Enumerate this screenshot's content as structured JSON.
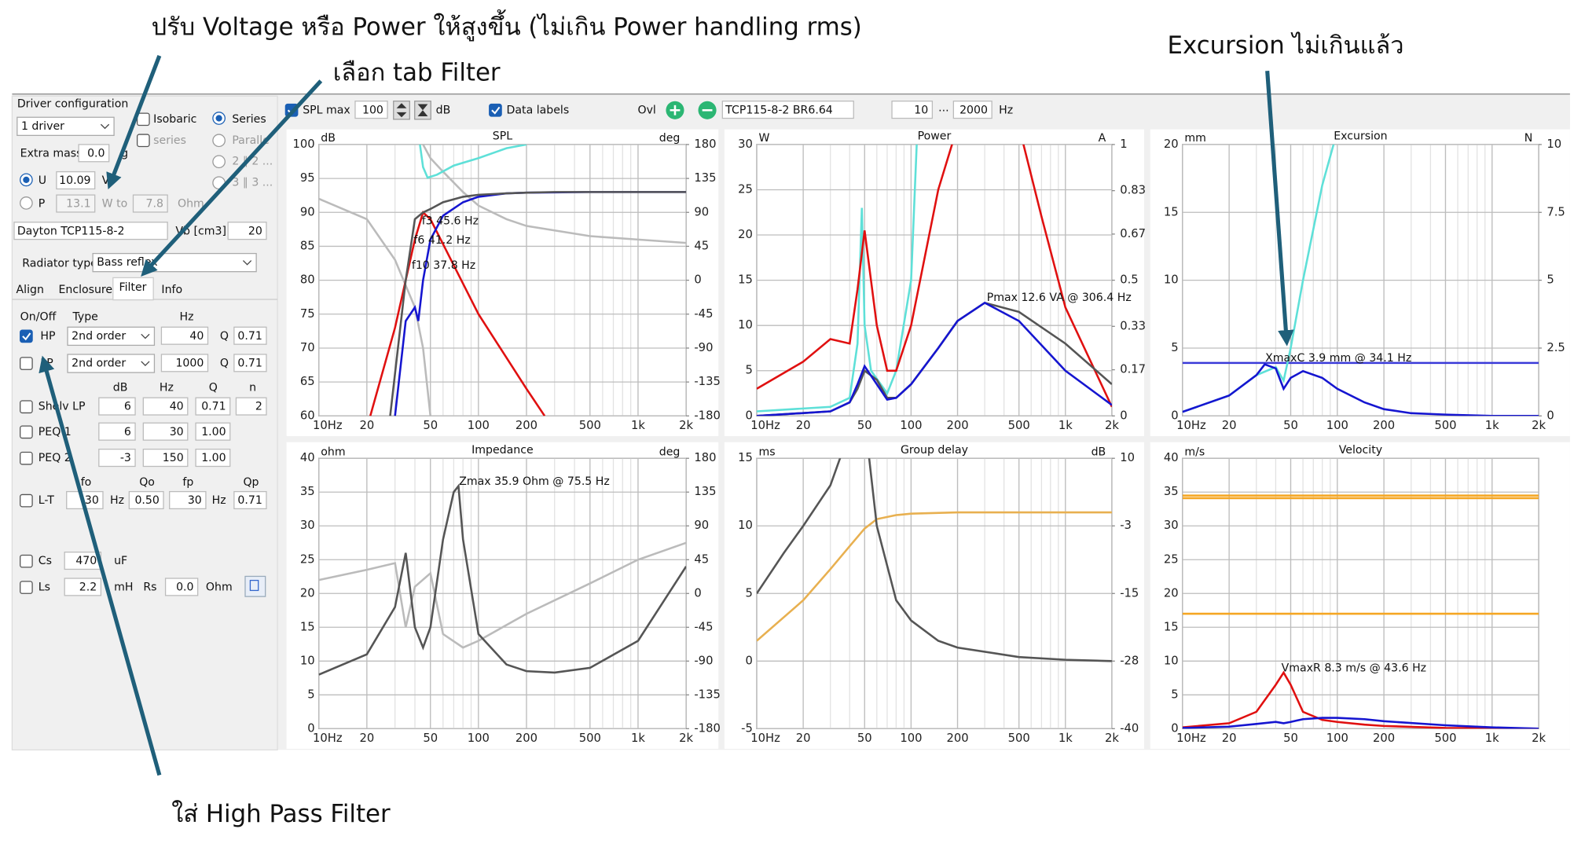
{
  "annotations": [
    "ปรับ Voltage หรือ Power ให้สูงขึ้น (ไม่เกิน Power handling rms)",
    "เลือก tab Filter",
    "Excursion ไม่เกินแล้ว",
    "ใส่ High Pass Filter"
  ],
  "toolbar": {
    "items": [
      "SPL max",
      "100",
      "dB",
      "Data labels",
      "Ovl",
      "TCP115-8-2 BR6.64",
      "10",
      "...",
      "2000",
      "Hz"
    ]
  },
  "panel": {
    "items": [
      "Driver configuration",
      "1 driver",
      "Isobaric",
      "Series",
      "series",
      "Paralle",
      "2 ∥ 2 ...",
      "3 ∥ 3 ...",
      "Extra mass",
      "0.0",
      "g",
      "U",
      "10.09",
      "V",
      "P",
      "13.1",
      "W to",
      "7.8",
      "Ohm",
      "Dayton TCP115-8-2",
      "Vb [cm3]",
      "20",
      "Radiator type",
      "Bass reflex",
      "Align",
      "Enclosure",
      "Filter",
      "Info",
      "On/Off",
      "Type",
      "Hz",
      "HP",
      "2nd order",
      "40",
      "Q",
      "0.71",
      "LP",
      "2nd order",
      "1000",
      "Q",
      "0.71",
      "dB",
      "Hz",
      "Q",
      "n",
      "Shelv LP",
      "6",
      "40",
      "0.71",
      "2",
      "PEQ 1",
      "6",
      "30",
      "1.00",
      "PEQ 2",
      "-3",
      "150",
      "1.00",
      "fo",
      "Qo",
      "fp",
      "Qp",
      "L-T",
      "30",
      "Hz",
      "0.50",
      "30",
      "Hz",
      "0.71",
      "Cs",
      "470",
      "uF",
      "Ls",
      "2.2",
      "mH",
      "Rs",
      "0.0",
      "Ohm"
    ]
  },
  "chart_data": [
    {
      "type": "line",
      "title": "SPL",
      "ylabel": "dB",
      "y2label": "deg",
      "xscale": "log",
      "grid": true,
      "xlim": [
        10,
        2000
      ],
      "xticks": [
        {
          "value": 10,
          "label": "10Hz"
        },
        20,
        50,
        100,
        200,
        500,
        {
          "value": 1000,
          "label": "1k"
        },
        {
          "value": 2000,
          "label": "2k"
        }
      ],
      "ylim": [
        60,
        100
      ],
      "yticks": [
        60,
        65,
        70,
        75,
        80,
        85,
        90,
        95,
        100
      ],
      "y2lim": [
        -180,
        180
      ],
      "y2ticks": [
        -180,
        -135,
        -90,
        -45,
        0,
        45,
        90,
        135,
        180
      ],
      "series": [
        {
          "color": "#bbbbbb",
          "axis": "y2",
          "x": [
            10,
            20,
            30,
            40,
            45,
            50
          ],
          "values": [
            108,
            81,
            27,
            -36,
            -90,
            -180
          ]
        },
        {
          "color": "#bbbbbb",
          "axis": "y2",
          "x": [
            45,
            50,
            60,
            80,
            100,
            150,
            200,
            500,
            1000,
            2000
          ],
          "values": [
            180,
            162,
            144,
            117,
            99,
            81,
            72,
            58.5,
            54,
            49.5
          ]
        },
        {
          "color": "#5ee0d8",
          "axis": "y2",
          "x": [
            43,
            45,
            48,
            55,
            70,
            100,
            150,
            200
          ],
          "values": [
            180,
            150,
            136,
            140,
            152,
            162,
            175,
            180
          ]
        },
        {
          "color": "#e01010",
          "x": [
            21,
            30,
            40,
            45,
            50,
            100,
            200,
            260
          ],
          "values": [
            60,
            73,
            86,
            90,
            89,
            75,
            64,
            60
          ]
        },
        {
          "color": "#1515d0",
          "x": [
            30,
            35,
            40,
            42,
            45,
            50,
            60,
            80,
            100,
            150,
            200,
            500,
            2000
          ],
          "values": [
            60,
            74,
            76,
            74,
            80,
            86,
            89.5,
            91.5,
            92.3,
            92.8,
            92.9,
            93,
            93
          ]
        },
        {
          "color": "#555555",
          "x": [
            28,
            35,
            40,
            45,
            50,
            60,
            80,
            100,
            150,
            200,
            300,
            500,
            1000,
            2000
          ],
          "values": [
            60,
            80,
            89,
            90,
            90.5,
            91.5,
            92.3,
            92.6,
            92.8,
            92.9,
            93,
            93,
            93,
            93
          ]
        }
      ],
      "annotations": [
        {
          "text": "f3 45.6 Hz",
          "color": "#666666"
        },
        {
          "text": "f6 41.2 Hz",
          "color": "#666666"
        },
        {
          "text": "f10 37.8 Hz",
          "color": "#666666"
        }
      ]
    },
    {
      "type": "line",
      "title": "Power",
      "ylabel": "W",
      "y2label": "A",
      "xscale": "log",
      "grid": true,
      "xlim": [
        10,
        2000
      ],
      "xticks": [
        {
          "value": 10,
          "label": "10Hz"
        },
        20,
        50,
        100,
        200,
        500,
        {
          "value": 1000,
          "label": "1k"
        },
        {
          "value": 2000,
          "label": "2k"
        }
      ],
      "ylim": [
        0,
        30
      ],
      "yticks": [
        0,
        5,
        10,
        15,
        20,
        25,
        30
      ],
      "y2lim": [
        0,
        1
      ],
      "y2ticks": [
        0,
        0.17,
        0.33,
        0.5,
        0.67,
        0.83,
        1
      ],
      "series": [
        {
          "color": "#5ee0d8",
          "x": [
            10,
            30,
            40,
            45,
            48,
            50,
            55,
            70,
            80,
            100,
            110
          ],
          "values": [
            0.5,
            1,
            2,
            8,
            23,
            10,
            5,
            2.5,
            5,
            15,
            32
          ]
        },
        {
          "color": "#e01010",
          "x": [
            10,
            20,
            30,
            40,
            45,
            50,
            60,
            70,
            80,
            100,
            150,
            200,
            300,
            500,
            700,
            1000,
            2000
          ],
          "values": [
            3,
            6,
            8.5,
            8,
            14,
            20.5,
            10,
            5,
            5,
            10,
            25,
            32,
            40,
            32,
            22,
            12,
            1
          ]
        },
        {
          "color": "#555555",
          "x": [
            10,
            30,
            40,
            45,
            50,
            60,
            70,
            80,
            100,
            150,
            200,
            300,
            500,
            1000,
            2000
          ],
          "values": [
            0,
            0.5,
            1.5,
            3,
            5,
            4,
            2,
            2,
            3.5,
            7.5,
            10.5,
            12.5,
            11.5,
            8,
            3.5
          ]
        },
        {
          "color": "#1515d0",
          "x": [
            10,
            30,
            40,
            45,
            50,
            60,
            70,
            80,
            100,
            150,
            200,
            300,
            500,
            1000,
            2000
          ],
          "values": [
            0,
            0.5,
            1.5,
            3.5,
            5.5,
            3.5,
            1.8,
            2,
            3.5,
            7.5,
            10.5,
            12.5,
            10.5,
            5,
            1.2
          ]
        }
      ],
      "annotations": [
        {
          "text": "Pmax 12.6 VA  @ 306.4 Hz",
          "color": "#777777"
        }
      ]
    },
    {
      "type": "line",
      "title": "Excursion",
      "ylabel": "mm",
      "y2label": "N",
      "xscale": "log",
      "grid": true,
      "xlim": [
        10,
        2000
      ],
      "xticks": [
        {
          "value": 10,
          "label": "10Hz"
        },
        20,
        50,
        100,
        200,
        500,
        {
          "value": 1000,
          "label": "1k"
        },
        {
          "value": 2000,
          "label": "2k"
        }
      ],
      "ylim": [
        0,
        20
      ],
      "yticks": [
        0,
        5,
        10,
        15,
        20
      ],
      "y2lim": [
        0,
        10
      ],
      "y2ticks": [
        0,
        2.5,
        5,
        7.5,
        10
      ],
      "series": [
        {
          "color": "#3a3ad8",
          "x": [
            10,
            2000
          ],
          "values": [
            3.9,
            3.9
          ]
        },
        {
          "color": "#5ee0d8",
          "x": [
            10,
            20,
            30,
            40,
            45,
            50,
            60,
            80,
            100
          ],
          "values": [
            0.3,
            1.5,
            3,
            3.6,
            2.6,
            5,
            10,
            17,
            21
          ]
        },
        {
          "color": "#1515d0",
          "x": [
            10,
            20,
            30,
            34,
            40,
            45,
            50,
            60,
            80,
            100,
            150,
            200,
            300,
            500,
            1000,
            2000
          ],
          "values": [
            0.3,
            1.5,
            3,
            3.8,
            3.5,
            2,
            2.8,
            3.3,
            2.8,
            2,
            1,
            0.5,
            0.2,
            0.1,
            0,
            0
          ]
        }
      ],
      "annotations": [
        {
          "text": "XmaxC 3.9 mm  @ 34.1 Hz",
          "color": "#2020d0"
        }
      ]
    },
    {
      "type": "line",
      "title": "Impedance",
      "ylabel": "ohm",
      "y2label": "deg",
      "xscale": "log",
      "grid": true,
      "xlim": [
        10,
        2000
      ],
      "xticks": [
        {
          "value": 10,
          "label": "10Hz"
        },
        20,
        50,
        100,
        200,
        500,
        {
          "value": 1000,
          "label": "1k"
        },
        {
          "value": 2000,
          "label": "2k"
        }
      ],
      "ylim": [
        0,
        40
      ],
      "yticks": [
        0,
        5,
        10,
        15,
        20,
        25,
        30,
        35,
        40
      ],
      "y2lim": [
        -180,
        180
      ],
      "y2ticks": [
        -180,
        -135,
        -90,
        -45,
        0,
        45,
        90,
        135,
        180
      ],
      "series": [
        {
          "color": "#bbbbbb",
          "axis": "y2",
          "x": [
            10,
            20,
            30,
            35,
            40,
            50,
            60,
            80,
            100,
            200,
            500,
            1000,
            2000
          ],
          "values": [
            18,
            31.5,
            40.5,
            -45,
            9,
            27,
            -54,
            -72,
            -63,
            -27,
            13.5,
            45,
            67.5
          ]
        },
        {
          "color": "#555555",
          "x": [
            10,
            20,
            30,
            35,
            40,
            45,
            50,
            60,
            70,
            75,
            80,
            100,
            150,
            200,
            300,
            500,
            1000,
            2000
          ],
          "values": [
            8,
            11,
            18,
            26,
            15,
            12,
            15,
            28,
            35,
            35.9,
            28,
            14,
            9.5,
            8.5,
            8.3,
            9,
            13,
            24
          ]
        }
      ],
      "annotations": [
        {
          "text": "Zmax 35.9 Ohm @ 75.5 Hz",
          "color": "#777777"
        }
      ]
    },
    {
      "type": "line",
      "title": "Group delay",
      "ylabel": "ms",
      "y2label": "dB",
      "xscale": "log",
      "grid": true,
      "xlim": [
        10,
        2000
      ],
      "xticks": [
        {
          "value": 10,
          "label": "10Hz"
        },
        20,
        50,
        100,
        200,
        500,
        {
          "value": 1000,
          "label": "1k"
        },
        {
          "value": 2000,
          "label": "2k"
        }
      ],
      "ylim": [
        -5,
        15
      ],
      "yticks": [
        -5,
        0,
        5,
        10,
        15
      ],
      "y2lim": [
        -40,
        10
      ],
      "y2ticks": [
        -40,
        {
          "value": -27.5,
          "label": "-28"
        },
        -15,
        {
          "value": -2.5,
          "label": "-3"
        },
        10
      ],
      "series": [
        {
          "color": "#e8b050",
          "axis": "y2",
          "x": [
            10,
            20,
            30,
            40,
            50,
            60,
            80,
            100,
            200,
            500,
            2000
          ],
          "values": [
            -23.75,
            -16.25,
            -10.5,
            -6.25,
            -3,
            -1.25,
            -0.5,
            -0.25,
            0,
            0,
            0
          ]
        },
        {
          "color": "#555555",
          "x": [
            10,
            15,
            20,
            30,
            40,
            45,
            50,
            60,
            80,
            100,
            150,
            200,
            500,
            1000,
            2000
          ],
          "values": [
            5,
            8,
            10,
            13,
            17,
            22,
            18,
            10,
            4.5,
            3,
            1.5,
            1,
            0.3,
            0.1,
            0
          ]
        }
      ],
      "annotations": []
    },
    {
      "type": "line",
      "title": "Velocity",
      "ylabel": "m/s",
      "xscale": "log",
      "grid": true,
      "xlim": [
        10,
        2000
      ],
      "xticks": [
        {
          "value": 10,
          "label": "10Hz"
        },
        20,
        50,
        100,
        200,
        500,
        {
          "value": 1000,
          "label": "1k"
        },
        {
          "value": 2000,
          "label": "2k"
        }
      ],
      "ylim": [
        0,
        40
      ],
      "yticks": [
        0,
        5,
        10,
        15,
        20,
        25,
        30,
        35,
        40
      ],
      "series": [
        {
          "color": "#f5a623",
          "x": [
            10,
            2000
          ],
          "values": [
            34.5,
            34.5
          ]
        },
        {
          "color": "#f5a623",
          "x": [
            10,
            2000
          ],
          "values": [
            34.1,
            34.1
          ]
        },
        {
          "color": "#f5a623",
          "x": [
            10,
            2000
          ],
          "values": [
            17,
            17
          ]
        },
        {
          "color": "#e01010",
          "x": [
            10,
            20,
            30,
            40,
            45,
            50,
            60,
            80,
            100,
            150,
            200,
            500,
            2000
          ],
          "values": [
            0.2,
            0.8,
            2.5,
            6.5,
            8.3,
            6.5,
            2.5,
            1.3,
            1,
            0.6,
            0.4,
            0.1,
            0
          ]
        },
        {
          "color": "#1515d0",
          "x": [
            10,
            20,
            30,
            40,
            45,
            50,
            60,
            80,
            100,
            150,
            200,
            500,
            1000,
            2000
          ],
          "values": [
            0.1,
            0.3,
            0.7,
            1,
            0.8,
            1,
            1.4,
            1.6,
            1.6,
            1.4,
            1.1,
            0.5,
            0.2,
            0
          ]
        }
      ],
      "annotations": [
        {
          "text": "VmaxR 8.3 m/s @ 43.6 Hz",
          "color": "#e01010"
        }
      ]
    }
  ]
}
